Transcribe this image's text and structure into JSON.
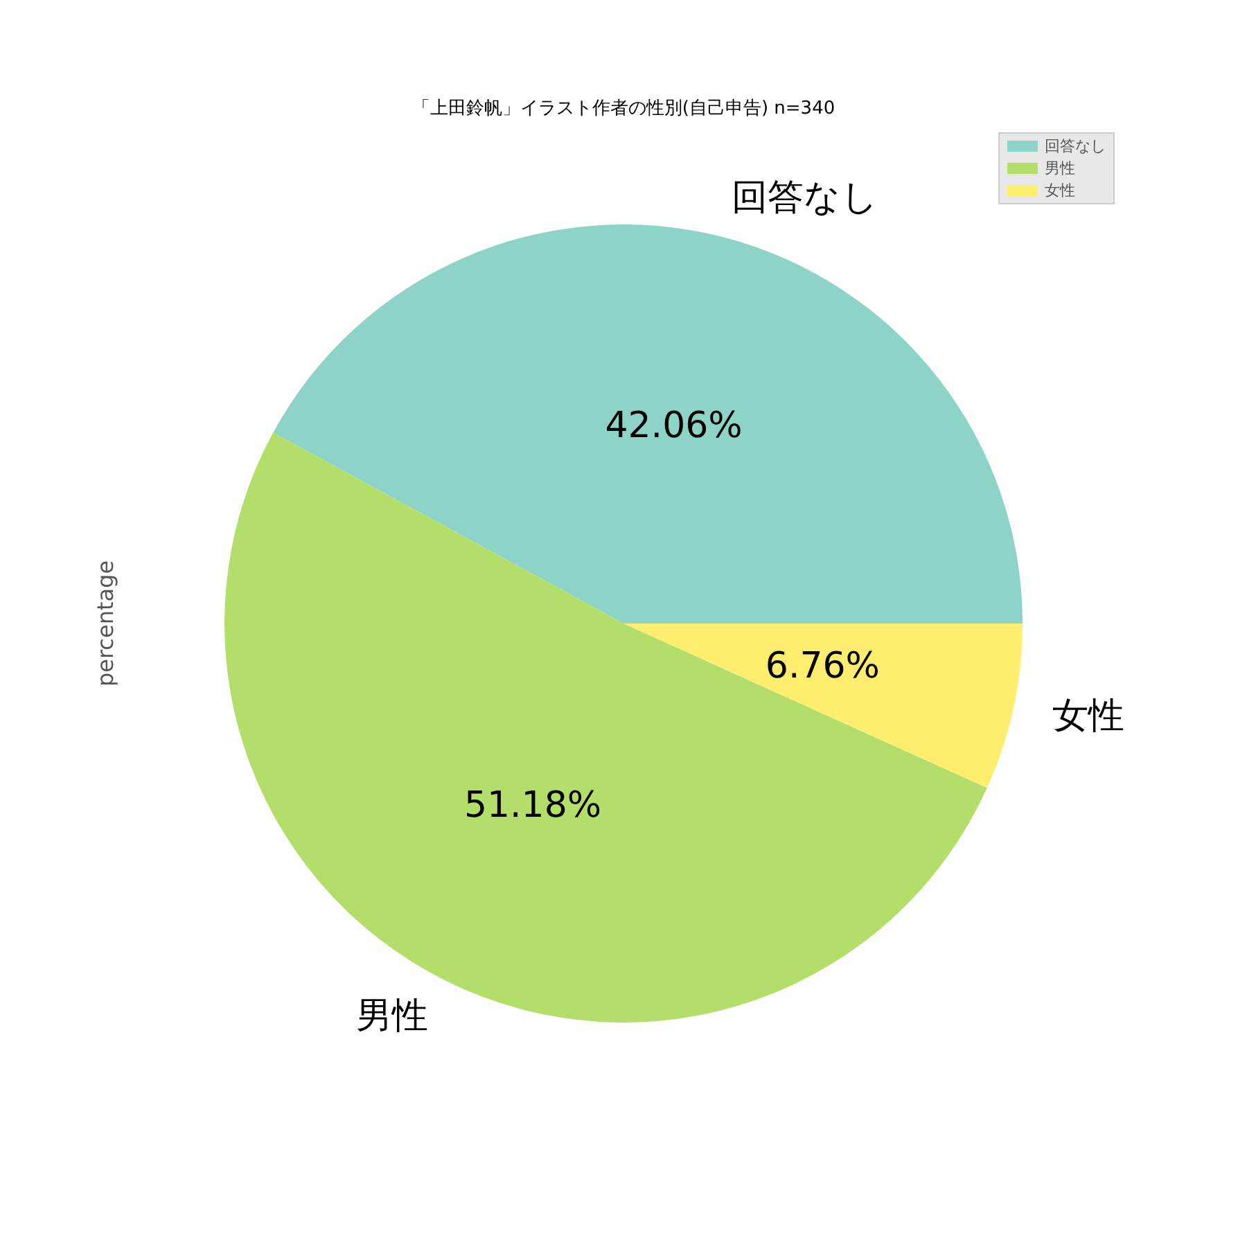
{
  "chart_data": {
    "type": "pie",
    "title": "「上田鈴帆」イラスト作者の性別(自己申告) n=340",
    "ylabel": "percentage",
    "categories": [
      "回答なし",
      "男性",
      "女性"
    ],
    "values": [
      42.06,
      51.18,
      6.76
    ],
    "value_labels": [
      "42.06%",
      "51.18%",
      "6.76%"
    ],
    "colors": [
      "#8dd3c7",
      "#b3de69",
      "#ffed6f"
    ],
    "legend": "top right"
  }
}
